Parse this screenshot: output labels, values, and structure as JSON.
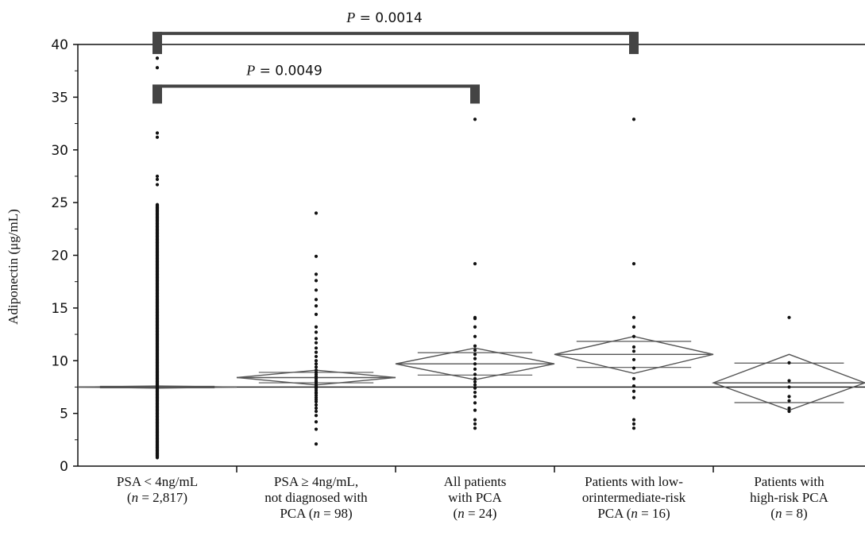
{
  "chart_data": {
    "type": "scatter",
    "subtype": "means-diamonds",
    "ylabel": "Adiponectin (μg/mL)",
    "ylim": [
      0,
      40
    ],
    "yticks": [
      0,
      5,
      10,
      15,
      20,
      25,
      30,
      35,
      40
    ],
    "grand_mean": 7.5,
    "grid": false,
    "groups": [
      {
        "label_lines": [
          [
            {
              "t": "PSA < 4ng/mL"
            }
          ],
          [
            {
              "t": "("
            },
            {
              "t": "n",
              "i": true
            },
            {
              "t": " = 2,817)"
            }
          ]
        ],
        "mean": 7.5,
        "ci": [
          7.4,
          7.6
        ],
        "points": [
          0.8,
          1.0,
          1.2,
          1.5,
          1.8,
          2.0,
          2.3,
          2.6,
          2.9,
          3.2,
          3.5,
          3.8,
          4.1,
          4.4,
          4.7,
          5.0,
          5.3,
          5.6,
          5.9,
          6.2,
          6.5,
          6.8,
          7.1,
          7.4,
          7.7,
          8.0,
          8.3,
          8.6,
          8.9,
          9.2,
          9.5,
          9.8,
          10.1,
          10.4,
          10.7,
          11.0,
          11.3,
          11.6,
          11.9,
          12.2,
          12.5,
          12.8,
          13.1,
          13.4,
          13.7,
          14.0,
          14.3,
          14.6,
          14.9,
          15.2,
          15.5,
          15.8,
          16.1,
          16.4,
          16.7,
          17.0,
          17.3,
          17.6,
          17.9,
          18.2,
          18.5,
          18.8,
          19.1,
          19.4,
          19.7,
          20.0,
          20.3,
          20.6,
          20.9,
          21.2,
          21.5,
          21.8,
          22.1,
          22.4,
          22.7,
          23.0,
          23.3,
          23.6,
          23.9,
          24.2,
          24.5,
          24.8,
          26.7,
          27.2,
          27.5,
          31.2,
          31.6,
          35.8,
          36.0,
          37.8,
          38.7
        ]
      },
      {
        "label_lines": [
          [
            {
              "t": "PSA ≥ 4ng/mL,"
            }
          ],
          [
            {
              "t": "not diagnosed with"
            }
          ],
          [
            {
              "t": "PCA ("
            },
            {
              "t": "n",
              "i": true
            },
            {
              "t": " = 98)"
            }
          ]
        ],
        "mean": 8.4,
        "ci": [
          7.7,
          9.1
        ],
        "points": [
          2.1,
          3.5,
          4.2,
          4.8,
          5.2,
          5.5,
          5.8,
          6.1,
          6.3,
          6.5,
          6.7,
          6.9,
          7.0,
          7.2,
          7.4,
          7.5,
          7.6,
          7.8,
          8.0,
          8.1,
          8.3,
          8.5,
          8.7,
          8.9,
          9.1,
          9.4,
          9.7,
          10.0,
          10.4,
          10.8,
          11.2,
          11.7,
          12.1,
          12.7,
          13.2,
          14.4,
          15.2,
          15.8,
          16.7,
          17.6,
          18.2,
          19.9,
          24.0
        ]
      },
      {
        "label_lines": [
          [
            {
              "t": "All patients"
            }
          ],
          [
            {
              "t": "with PCA"
            }
          ],
          [
            {
              "t": "("
            },
            {
              "t": "n",
              "i": true
            },
            {
              "t": " = 24)"
            }
          ]
        ],
        "mean": 9.7,
        "ci": [
          8.2,
          11.2
        ],
        "points": [
          3.6,
          4.0,
          4.4,
          5.3,
          6.0,
          6.6,
          7.0,
          7.4,
          7.7,
          8.0,
          8.3,
          8.7,
          9.2,
          9.7,
          10.2,
          10.6,
          11.0,
          11.4,
          12.3,
          13.2,
          14.0,
          14.1,
          19.2,
          32.9
        ]
      },
      {
        "label_lines": [
          [
            {
              "t": "Patients with low-"
            }
          ],
          [
            {
              "t": "orintermediate-risk"
            }
          ],
          [
            {
              "t": "PCA ("
            },
            {
              "t": "n",
              "i": true
            },
            {
              "t": " = 16)"
            }
          ]
        ],
        "mean": 10.6,
        "ci": [
          8.8,
          12.3
        ],
        "points": [
          3.6,
          4.0,
          4.4,
          6.5,
          7.1,
          7.6,
          8.3,
          9.3,
          10.1,
          10.9,
          11.3,
          12.3,
          13.2,
          14.1,
          19.2,
          32.9
        ]
      },
      {
        "label_lines": [
          [
            {
              "t": "Patients with"
            }
          ],
          [
            {
              "t": "high-risk PCA"
            }
          ],
          [
            {
              "t": "("
            },
            {
              "t": "n",
              "i": true
            },
            {
              "t": " = 8)"
            }
          ]
        ],
        "mean": 7.9,
        "ci": [
          5.3,
          10.6
        ],
        "points": [
          5.2,
          5.5,
          6.2,
          6.6,
          7.5,
          8.1,
          9.8,
          14.1
        ]
      }
    ],
    "annotations": [
      {
        "text": "P = 0.0014",
        "from_group": 0,
        "to_group": 3,
        "level": 41.2
      },
      {
        "text": "P = 0.0049",
        "from_group": 0,
        "to_group": 2,
        "level": 36.2
      }
    ]
  }
}
